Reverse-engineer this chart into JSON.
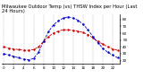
{
  "title": "Milwaukee Outdoor Temp (vs) THSW Index per Hour (Last 24 Hours)",
  "red_data": [
    40,
    38,
    37,
    36,
    35,
    35,
    36,
    40,
    48,
    55,
    60,
    63,
    65,
    65,
    64,
    63,
    61,
    58,
    53,
    48,
    44,
    40,
    37,
    35
  ],
  "blue_data": [
    30,
    28,
    26,
    24,
    22,
    21,
    23,
    32,
    48,
    62,
    72,
    78,
    82,
    84,
    82,
    79,
    73,
    65,
    55,
    46,
    38,
    32,
    28,
    24
  ],
  "red_color": "#cc0000",
  "blue_color": "#0000cc",
  "background_color": "#ffffff",
  "grid_color": "#888888",
  "ylim_min": 15,
  "ylim_max": 88,
  "yticks": [
    20,
    30,
    40,
    50,
    60,
    70,
    80
  ],
  "n_hours": 24,
  "title_fontsize": 3.8,
  "tick_fontsize": 3.0,
  "linewidth": 0.6,
  "markersize": 1.5
}
